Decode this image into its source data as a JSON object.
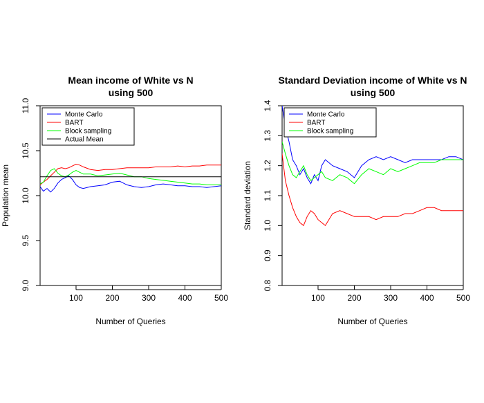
{
  "colors": {
    "monte_carlo": "#0000ff",
    "bart": "#ff0000",
    "block_sampling": "#00ff00",
    "actual_mean": "#000000"
  },
  "chart_data": [
    {
      "type": "line",
      "title": [
        "Mean income of White vs N",
        "using 500"
      ],
      "xlabel": "Number of Queries",
      "ylabel": "Population mean",
      "xlim": [
        1,
        500
      ],
      "ylim": [
        9.0,
        11.0
      ],
      "xticks": [
        100,
        200,
        300,
        400,
        500
      ],
      "yticks": [
        9.0,
        9.5,
        10.0,
        10.5,
        11.0
      ],
      "legend_position": "top-left",
      "series": [
        {
          "name": "Monte Carlo",
          "color_key": "monte_carlo",
          "x": [
            1,
            10,
            20,
            30,
            40,
            50,
            60,
            70,
            80,
            90,
            100,
            110,
            120,
            140,
            160,
            180,
            200,
            220,
            240,
            260,
            280,
            300,
            320,
            340,
            360,
            380,
            400,
            420,
            440,
            460,
            480,
            500
          ],
          "y": [
            10.1,
            10.05,
            10.08,
            10.04,
            10.08,
            10.14,
            10.18,
            10.2,
            10.22,
            10.18,
            10.12,
            10.09,
            10.08,
            10.1,
            10.11,
            10.12,
            10.15,
            10.16,
            10.12,
            10.1,
            10.09,
            10.1,
            10.12,
            10.13,
            10.12,
            10.11,
            10.11,
            10.1,
            10.1,
            10.09,
            10.1,
            10.11
          ]
        },
        {
          "name": "BART",
          "color_key": "bart",
          "x": [
            1,
            10,
            20,
            30,
            40,
            50,
            60,
            70,
            80,
            90,
            100,
            110,
            120,
            140,
            160,
            180,
            200,
            220,
            240,
            260,
            280,
            300,
            320,
            340,
            360,
            380,
            400,
            420,
            440,
            460,
            480,
            500
          ],
          "y": [
            10.12,
            10.15,
            10.18,
            10.22,
            10.26,
            10.3,
            10.31,
            10.3,
            10.31,
            10.33,
            10.35,
            10.34,
            10.32,
            10.29,
            10.28,
            10.29,
            10.29,
            10.3,
            10.31,
            10.31,
            10.31,
            10.31,
            10.32,
            10.32,
            10.32,
            10.33,
            10.32,
            10.33,
            10.33,
            10.34,
            10.34,
            10.34
          ]
        },
        {
          "name": "Block sampling",
          "color_key": "block_sampling",
          "x": [
            1,
            10,
            20,
            30,
            40,
            50,
            60,
            70,
            80,
            90,
            100,
            110,
            120,
            140,
            160,
            180,
            200,
            220,
            240,
            260,
            280,
            300,
            320,
            340,
            360,
            380,
            400,
            420,
            440,
            460,
            480,
            500
          ],
          "y": [
            10.13,
            10.15,
            10.22,
            10.28,
            10.3,
            10.25,
            10.22,
            10.21,
            10.23,
            10.26,
            10.28,
            10.26,
            10.24,
            10.24,
            10.22,
            10.23,
            10.24,
            10.25,
            10.23,
            10.21,
            10.21,
            10.19,
            10.18,
            10.17,
            10.16,
            10.15,
            10.14,
            10.13,
            10.13,
            10.12,
            10.12,
            10.12
          ]
        },
        {
          "name": "Actual Mean",
          "color_key": "actual_mean",
          "x": [
            1,
            500
          ],
          "y": [
            10.21,
            10.21
          ]
        }
      ]
    },
    {
      "type": "line",
      "title": [
        "Standard Deviation income of White vs N",
        "using 500"
      ],
      "xlabel": "Number of Queries",
      "ylabel": "Standard deviation",
      "xlim": [
        1,
        500
      ],
      "ylim": [
        0.8,
        1.4
      ],
      "xticks": [
        100,
        200,
        300,
        400,
        500
      ],
      "yticks": [
        0.8,
        0.9,
        1.0,
        1.1,
        1.2,
        1.3,
        1.4
      ],
      "legend_position": "top-left",
      "series": [
        {
          "name": "Monte Carlo",
          "color_key": "monte_carlo",
          "x": [
            1,
            10,
            20,
            30,
            40,
            50,
            60,
            70,
            80,
            90,
            100,
            110,
            120,
            140,
            160,
            180,
            200,
            220,
            240,
            260,
            280,
            300,
            320,
            340,
            360,
            380,
            400,
            420,
            440,
            460,
            480,
            500
          ],
          "y": [
            1.4,
            1.33,
            1.28,
            1.22,
            1.2,
            1.17,
            1.19,
            1.16,
            1.14,
            1.17,
            1.15,
            1.2,
            1.22,
            1.2,
            1.19,
            1.18,
            1.16,
            1.2,
            1.22,
            1.23,
            1.22,
            1.23,
            1.22,
            1.21,
            1.22,
            1.22,
            1.22,
            1.22,
            1.22,
            1.23,
            1.23,
            1.22
          ]
        },
        {
          "name": "BART",
          "color_key": "bart",
          "x": [
            1,
            10,
            20,
            30,
            40,
            50,
            60,
            70,
            80,
            90,
            100,
            110,
            120,
            140,
            160,
            180,
            200,
            220,
            240,
            260,
            280,
            300,
            320,
            340,
            360,
            380,
            400,
            420,
            440,
            460,
            480,
            500
          ],
          "y": [
            1.24,
            1.15,
            1.1,
            1.06,
            1.03,
            1.01,
            1.0,
            1.03,
            1.05,
            1.04,
            1.02,
            1.01,
            1.0,
            1.04,
            1.05,
            1.04,
            1.03,
            1.03,
            1.03,
            1.02,
            1.03,
            1.03,
            1.03,
            1.04,
            1.04,
            1.05,
            1.06,
            1.06,
            1.05,
            1.05,
            1.05,
            1.05
          ]
        },
        {
          "name": "Block sampling",
          "color_key": "block_sampling",
          "x": [
            1,
            10,
            20,
            30,
            40,
            50,
            60,
            70,
            80,
            90,
            100,
            110,
            120,
            140,
            160,
            180,
            200,
            220,
            240,
            260,
            280,
            300,
            320,
            340,
            360,
            380,
            400,
            420,
            440,
            460,
            480,
            500
          ],
          "y": [
            1.28,
            1.24,
            1.2,
            1.17,
            1.16,
            1.18,
            1.2,
            1.17,
            1.15,
            1.16,
            1.17,
            1.18,
            1.16,
            1.15,
            1.17,
            1.16,
            1.14,
            1.17,
            1.19,
            1.18,
            1.17,
            1.19,
            1.18,
            1.19,
            1.2,
            1.21,
            1.21,
            1.21,
            1.22,
            1.22,
            1.22,
            1.22
          ]
        }
      ]
    }
  ]
}
